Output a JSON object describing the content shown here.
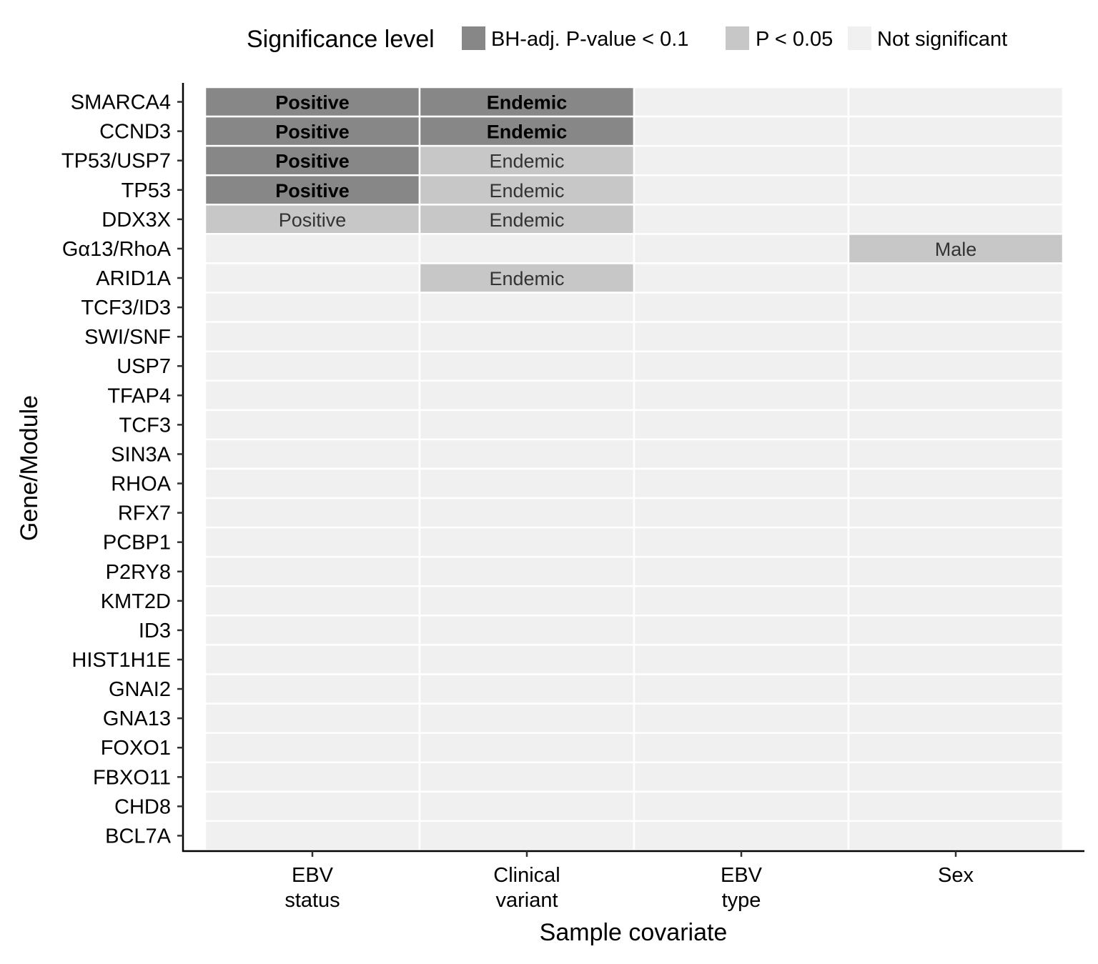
{
  "chart_data": {
    "type": "heatmap",
    "xlabel": "Sample covariate",
    "ylabel": "Gene/Module",
    "x_categories": [
      [
        "EBV",
        "status"
      ],
      [
        "Clinical",
        "variant"
      ],
      [
        "EBV",
        "type"
      ],
      [
        "Sex"
      ]
    ],
    "y_categories": [
      "SMARCA4",
      "CCND3",
      "TP53/USP7",
      "TP53",
      "DDX3X",
      "Gα13/RhoA",
      "ARID1A",
      "TCF3/ID3",
      "SWI/SNF",
      "USP7",
      "TFAP4",
      "TCF3",
      "SIN3A",
      "RHOA",
      "RFX7",
      "PCBP1",
      "P2RY8",
      "KMT2D",
      "ID3",
      "HIST1H1E",
      "GNAI2",
      "GNA13",
      "FOXO1",
      "FBXO11",
      "CHD8",
      "BCL7A"
    ],
    "legend": {
      "title": "Significance level",
      "position": "top",
      "entries": [
        {
          "key": "bh",
          "label": "BH-adj. P-value < 0.1",
          "color": "#878787"
        },
        {
          "key": "p05",
          "label": "P < 0.05",
          "color": "#c7c7c7"
        },
        {
          "key": "ns",
          "label": "Not significant",
          "color": "#f0f0f0"
        }
      ]
    },
    "default_level": "ns",
    "cells": [
      {
        "row": 0,
        "col": 0,
        "level": "bh",
        "label": "Positive"
      },
      {
        "row": 0,
        "col": 1,
        "level": "bh",
        "label": "Endemic"
      },
      {
        "row": 1,
        "col": 0,
        "level": "bh",
        "label": "Positive"
      },
      {
        "row": 1,
        "col": 1,
        "level": "bh",
        "label": "Endemic"
      },
      {
        "row": 2,
        "col": 0,
        "level": "bh",
        "label": "Positive"
      },
      {
        "row": 2,
        "col": 1,
        "level": "p05",
        "label": "Endemic"
      },
      {
        "row": 3,
        "col": 0,
        "level": "bh",
        "label": "Positive"
      },
      {
        "row": 3,
        "col": 1,
        "level": "p05",
        "label": "Endemic"
      },
      {
        "row": 4,
        "col": 0,
        "level": "p05",
        "label": "Positive"
      },
      {
        "row": 4,
        "col": 1,
        "level": "p05",
        "label": "Endemic"
      },
      {
        "row": 5,
        "col": 3,
        "level": "p05",
        "label": "Male"
      },
      {
        "row": 6,
        "col": 1,
        "level": "p05",
        "label": "Endemic"
      }
    ],
    "grid": true
  }
}
